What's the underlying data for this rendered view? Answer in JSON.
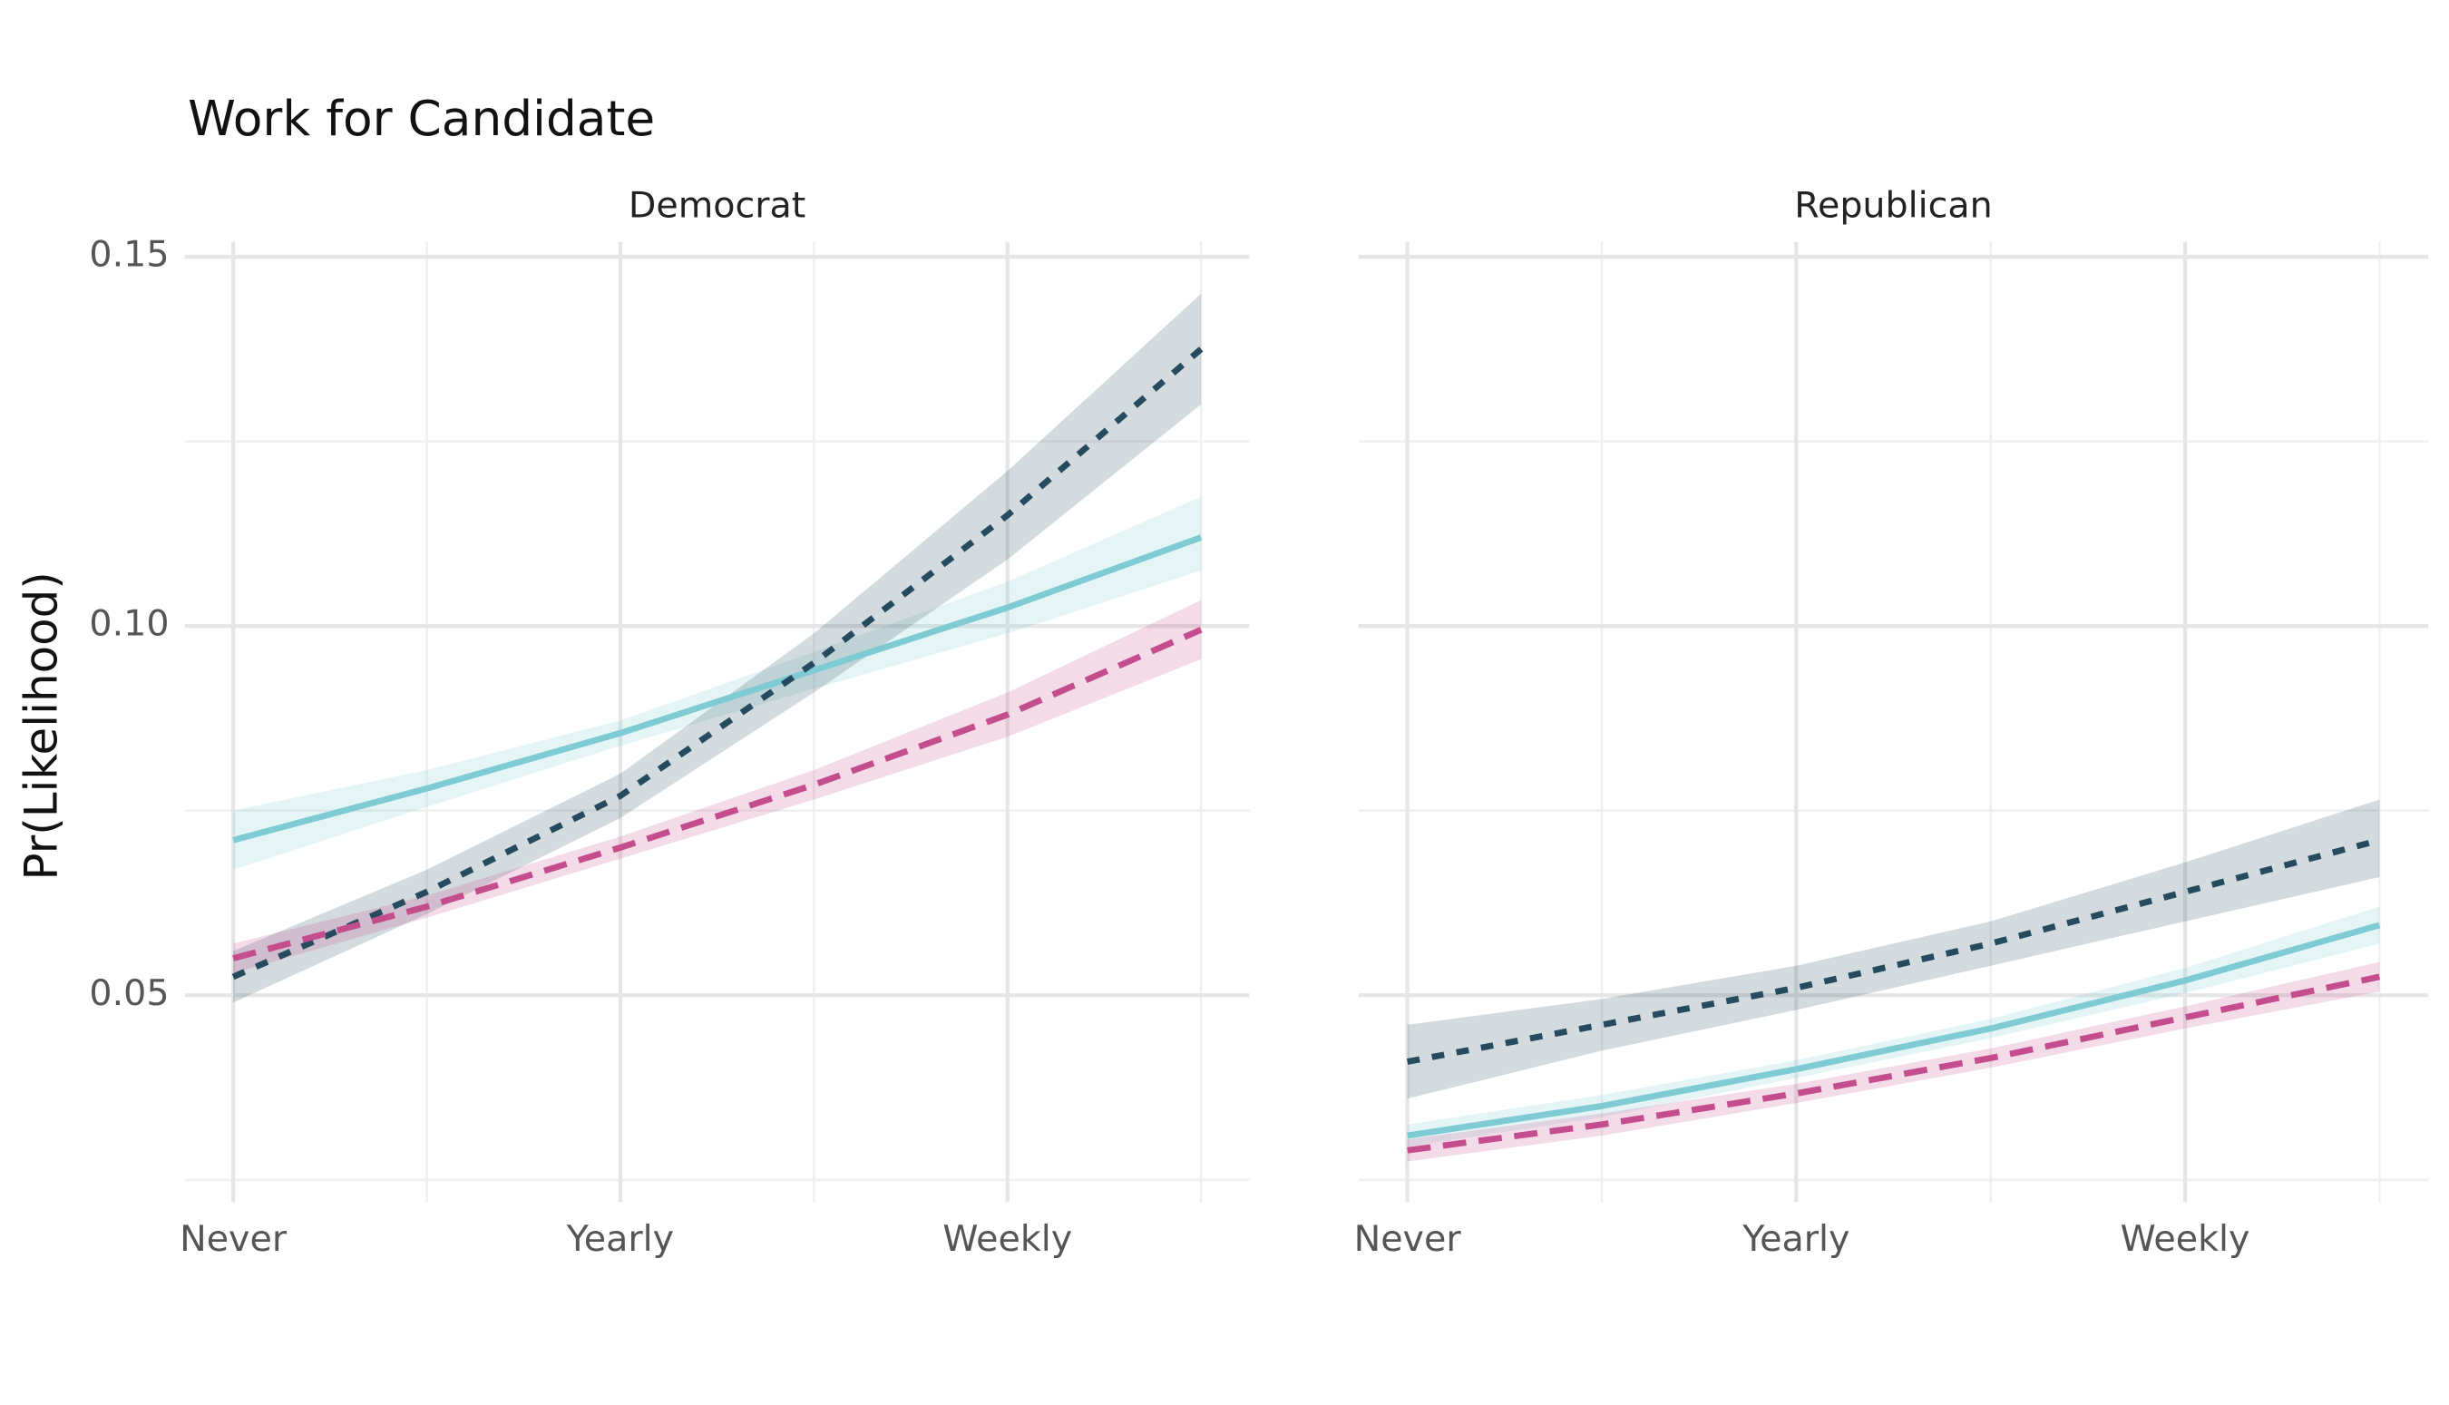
{
  "chart_data": {
    "type": "line",
    "title": "Work for Candidate",
    "ylabel": "Pr(Likelihood)",
    "x": [
      1,
      3,
      5,
      7,
      9,
      11
    ],
    "xlim": [
      0.5,
      11.5
    ],
    "xticks": [
      {
        "value": 1,
        "label": "Never"
      },
      {
        "value": 5,
        "label": "Yearly"
      },
      {
        "value": 9,
        "label": "Weekly"
      }
    ],
    "ylim": [
      0.022,
      0.152
    ],
    "yticks": [
      0.05,
      {
        "value": 0.1,
        "label": "0.10"
      },
      0.15
    ],
    "grid": true,
    "panels": [
      {
        "title": "Democrat",
        "series": [
          {
            "color": "#7ecbd3",
            "dash": "solid",
            "values": [
              0.071,
              0.078,
              0.0855,
              0.094,
              0.1025,
              0.112
            ],
            "lower": [
              0.067,
              0.0755,
              0.0838,
              0.0915,
              0.099,
              0.1075
            ],
            "upper": [
              0.075,
              0.0805,
              0.0872,
              0.0965,
              0.106,
              0.1175
            ]
          },
          {
            "color": "#264a5e",
            "dash": "dotted",
            "values": [
              0.0525,
              0.064,
              0.077,
              0.095,
              0.115,
              0.1375
            ],
            "lower": [
              0.049,
              0.061,
              0.074,
              0.091,
              0.109,
              0.13
            ],
            "upper": [
              0.056,
              0.067,
              0.08,
              0.099,
              0.121,
              0.145
            ]
          },
          {
            "color": "#c44d8e",
            "dash": "dashed",
            "values": [
              0.055,
              0.062,
              0.07,
              0.0785,
              0.088,
              0.0995
            ],
            "lower": [
              0.053,
              0.0605,
              0.0685,
              0.0765,
              0.085,
              0.0955
            ],
            "upper": [
              0.057,
              0.0635,
              0.0715,
              0.0805,
              0.091,
              0.1035
            ]
          }
        ]
      },
      {
        "title": "Republican",
        "series": [
          {
            "color": "#7ecbd3",
            "dash": "solid",
            "values": [
              0.031,
              0.035,
              0.04,
              0.0455,
              0.052,
              0.0595
            ],
            "lower": [
              0.0295,
              0.0335,
              0.0388,
              0.0442,
              0.0503,
              0.057
            ],
            "upper": [
              0.0325,
              0.0365,
              0.0412,
              0.0468,
              0.0537,
              0.062
            ]
          },
          {
            "color": "#264a5e",
            "dash": "dotted",
            "values": [
              0.041,
              0.046,
              0.051,
              0.057,
              0.064,
              0.071
            ],
            "lower": [
              0.036,
              0.0425,
              0.048,
              0.054,
              0.06,
              0.066
            ],
            "upper": [
              0.046,
              0.0495,
              0.054,
              0.06,
              0.068,
              0.0765
            ]
          },
          {
            "color": "#c44d8e",
            "dash": "dashed",
            "values": [
              0.029,
              0.0325,
              0.0367,
              0.0415,
              0.047,
              0.0525
            ],
            "lower": [
              0.0275,
              0.031,
              0.0354,
              0.0402,
              0.0455,
              0.0505
            ],
            "upper": [
              0.0305,
              0.034,
              0.038,
              0.0428,
              0.0485,
              0.0545
            ]
          }
        ]
      }
    ]
  }
}
